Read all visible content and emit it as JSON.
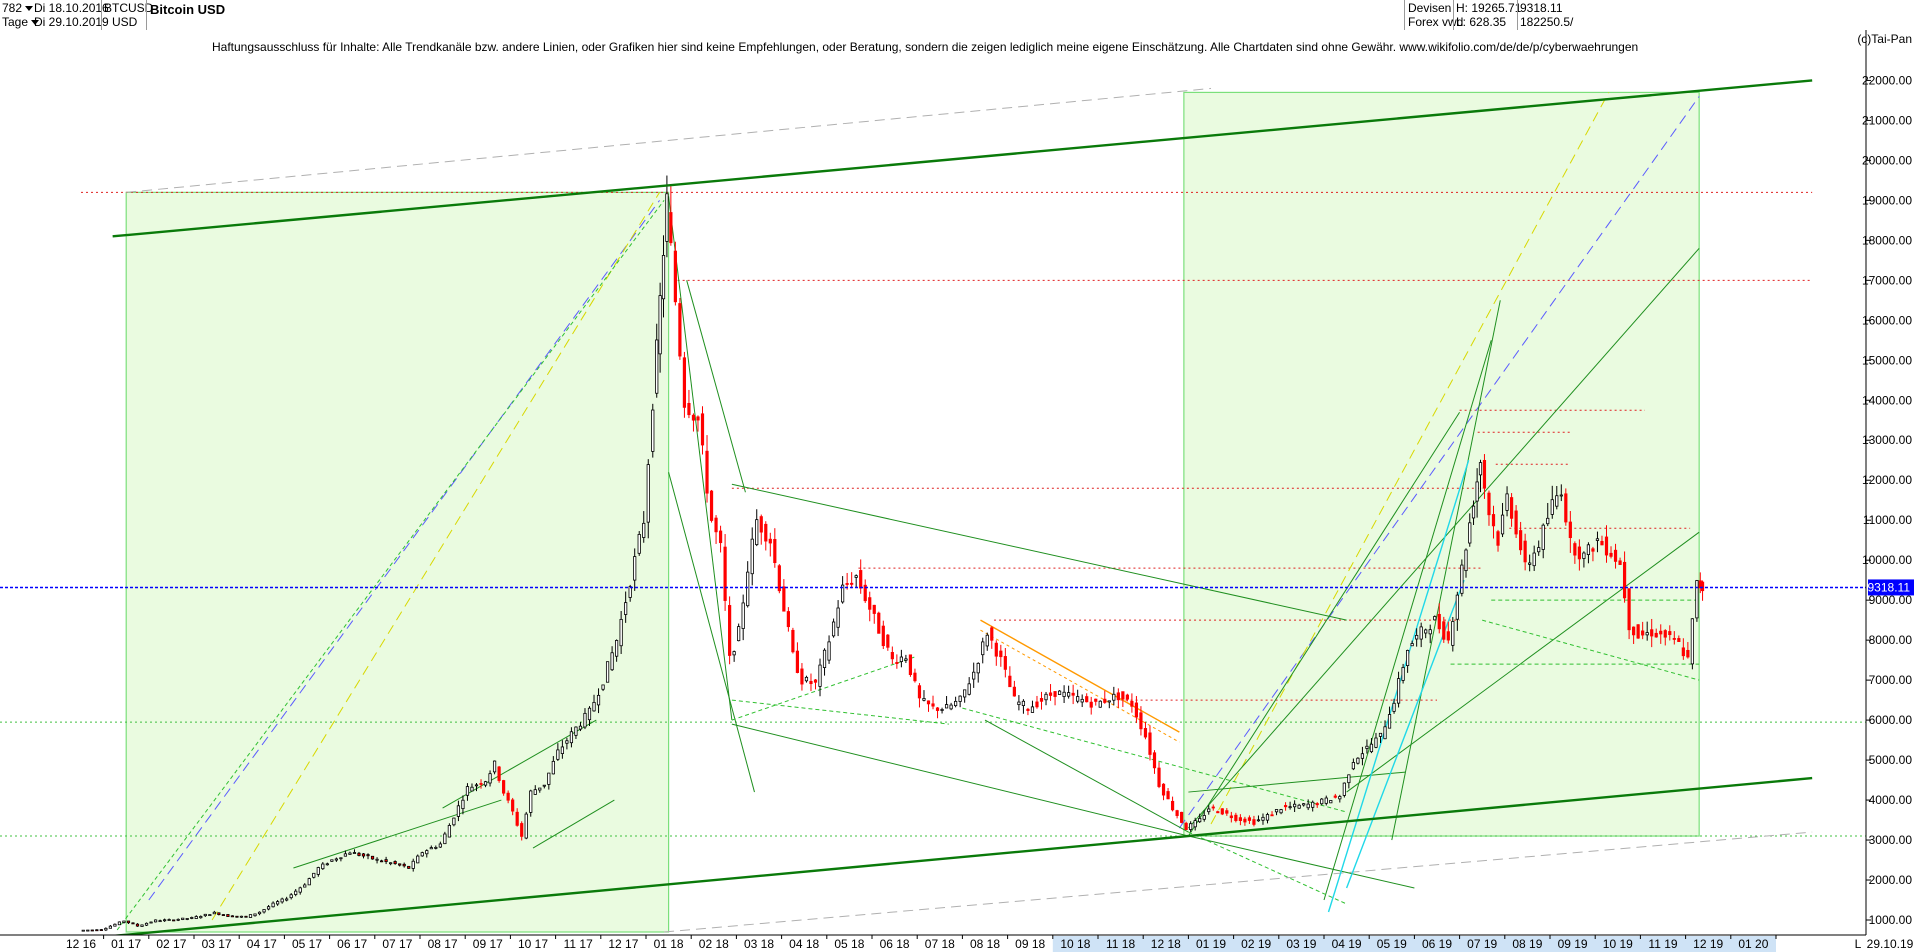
{
  "header": {
    "bars": "782",
    "from_label": "Di 18.10.2016",
    "period": "Tage",
    "to_label": "Di 29.10.2019",
    "symbol": "BTCUSD",
    "currency": "USD",
    "title": "Bitcoin USD",
    "market1": "Devisen",
    "market2": "Forex vwd",
    "high_label": "H: 19265.71",
    "low_label": "L: 628.35",
    "last": "9318.11",
    "volume": "182250.5/"
  },
  "disclaimer": "Haftungsausschluss für Inhalte: Alle Trendkanäle bzw. andere Linien, oder Grafiken hier sind keine Empfehlungen, oder Beratung, sondern die zeigen lediglich meine eigene Einschätzung. Alle Chartdaten sind ohne Gewähr.  www.wikifolio.com/de/de/p/cyberwaehrungen",
  "copyright": "(c)Tai-Pan",
  "colors": {
    "up": "#000000",
    "down": "#ff0000",
    "trend": "#008000",
    "box_fill": "#eafbe0",
    "box_border": "#7be07b",
    "last_line": "#0000ff",
    "bottom_axis": "#cfe3f6"
  },
  "chart_data": {
    "type": "candlestick",
    "title": "Bitcoin USD",
    "x_axis_labels": [
      "12 16",
      "01 17",
      "02 17",
      "03 17",
      "04 17",
      "05 17",
      "06 17",
      "07 17",
      "08 17",
      "09 17",
      "10 17",
      "11 17",
      "12 17",
      "01 18",
      "02 18",
      "03 18",
      "04 18",
      "05 18",
      "06 18",
      "07 18",
      "08 18",
      "09 18",
      "10 18",
      "11 18",
      "12 18",
      "01 19",
      "02 19",
      "03 19",
      "04 19",
      "05 19",
      "06 19",
      "07 19",
      "08 19",
      "09 19",
      "10 19",
      "11 19",
      "12 19",
      "01 20",
      "L",
      "29.10.19"
    ],
    "y_axis_labels": [
      "1000.00",
      "2000.00",
      "3000.00",
      "4000.00",
      "5000.00",
      "6000.00",
      "7000.00",
      "8000.00",
      "9000.00",
      "10000.00",
      "11000.00",
      "12000.00",
      "13000.00",
      "14000.00",
      "15000.00",
      "16000.00",
      "17000.00",
      "18000.00",
      "19000.00",
      "20000.00",
      "21000.00",
      "22000.00"
    ],
    "ylim": [
      600,
      22300
    ],
    "xlim": [
      0,
      38.3
    ],
    "last_value": 9318.11,
    "last_value_label": "9318.11",
    "highlight_months": [
      "10 18",
      "11 18",
      "12 18",
      "01 19",
      "02 19",
      "03 19",
      "04 19",
      "05 19",
      "06 19",
      "07 19",
      "08 19",
      "09 19",
      "10 19",
      "11 19",
      "12 19",
      "01 20"
    ],
    "price_path": [
      [
        0.0,
        740
      ],
      [
        0.5,
        760
      ],
      [
        1.0,
        980
      ],
      [
        1.3,
        850
      ],
      [
        1.7,
        990
      ],
      [
        2.0,
        1000
      ],
      [
        2.5,
        1050
      ],
      [
        3.0,
        1180
      ],
      [
        3.3,
        1100
      ],
      [
        3.7,
        1080
      ],
      [
        4.0,
        1200
      ],
      [
        4.3,
        1400
      ],
      [
        4.6,
        1550
      ],
      [
        5.0,
        1900
      ],
      [
        5.3,
        2300
      ],
      [
        5.6,
        2500
      ],
      [
        6.0,
        2700
      ],
      [
        6.3,
        2600
      ],
      [
        6.6,
        2500
      ],
      [
        7.0,
        2400
      ],
      [
        7.3,
        2300
      ],
      [
        7.6,
        2700
      ],
      [
        8.0,
        2900
      ],
      [
        8.3,
        3600
      ],
      [
        8.6,
        4300
      ],
      [
        9.0,
        4500
      ],
      [
        9.2,
        4900
      ],
      [
        9.4,
        4200
      ],
      [
        9.6,
        3700
      ],
      [
        9.8,
        3100
      ],
      [
        10.0,
        4200
      ],
      [
        10.3,
        4400
      ],
      [
        10.6,
        5200
      ],
      [
        11.0,
        5800
      ],
      [
        11.3,
        6200
      ],
      [
        11.6,
        7000
      ],
      [
        11.9,
        8000
      ],
      [
        12.2,
        9500
      ],
      [
        12.5,
        11000
      ],
      [
        12.7,
        14000
      ],
      [
        12.85,
        16500
      ],
      [
        13.0,
        19000
      ],
      [
        13.2,
        16500
      ],
      [
        13.4,
        14000
      ],
      [
        13.7,
        13500
      ],
      [
        14.0,
        11000
      ],
      [
        14.2,
        10300
      ],
      [
        14.4,
        7500
      ],
      [
        14.6,
        8200
      ],
      [
        14.8,
        9800
      ],
      [
        15.0,
        11000
      ],
      [
        15.3,
        10500
      ],
      [
        15.6,
        8800
      ],
      [
        15.8,
        7600
      ],
      [
        16.0,
        7000
      ],
      [
        16.3,
        6900
      ],
      [
        16.6,
        8000
      ],
      [
        16.9,
        9300
      ],
      [
        17.2,
        9600
      ],
      [
        17.5,
        8800
      ],
      [
        17.8,
        8000
      ],
      [
        18.0,
        7500
      ],
      [
        18.3,
        7600
      ],
      [
        18.6,
        6500
      ],
      [
        18.9,
        6300
      ],
      [
        19.2,
        6300
      ],
      [
        19.5,
        6500
      ],
      [
        19.8,
        7200
      ],
      [
        20.1,
        8200
      ],
      [
        20.4,
        7500
      ],
      [
        20.7,
        6500
      ],
      [
        21.0,
        6300
      ],
      [
        21.3,
        6500
      ],
      [
        21.6,
        6700
      ],
      [
        21.9,
        6600
      ],
      [
        22.2,
        6500
      ],
      [
        22.5,
        6400
      ],
      [
        22.8,
        6550
      ],
      [
        23.0,
        6600
      ],
      [
        23.3,
        6400
      ],
      [
        23.6,
        5600
      ],
      [
        23.9,
        4400
      ],
      [
        24.2,
        3800
      ],
      [
        24.5,
        3300
      ],
      [
        24.8,
        3500
      ],
      [
        25.0,
        3800
      ],
      [
        25.3,
        3700
      ],
      [
        25.6,
        3550
      ],
      [
        26.0,
        3450
      ],
      [
        26.3,
        3600
      ],
      [
        26.6,
        3800
      ],
      [
        27.0,
        3850
      ],
      [
        27.3,
        3900
      ],
      [
        27.6,
        4000
      ],
      [
        27.9,
        4100
      ],
      [
        28.2,
        5000
      ],
      [
        28.5,
        5300
      ],
      [
        28.8,
        5600
      ],
      [
        29.1,
        6500
      ],
      [
        29.4,
        7800
      ],
      [
        29.7,
        8200
      ],
      [
        30.0,
        8500
      ],
      [
        30.3,
        8000
      ],
      [
        30.6,
        9800
      ],
      [
        30.85,
        11500
      ],
      [
        31.0,
        12500
      ],
      [
        31.2,
        11200
      ],
      [
        31.4,
        10500
      ],
      [
        31.6,
        11600
      ],
      [
        31.8,
        10800
      ],
      [
        32.0,
        9800
      ],
      [
        32.3,
        10400
      ],
      [
        32.6,
        11400
      ],
      [
        32.8,
        11800
      ],
      [
        33.0,
        10400
      ],
      [
        33.3,
        10100
      ],
      [
        33.6,
        10500
      ],
      [
        33.9,
        10200
      ],
      [
        34.1,
        9900
      ],
      [
        34.3,
        8400
      ],
      [
        34.5,
        8100
      ],
      [
        34.8,
        8200
      ],
      [
        35.1,
        8100
      ],
      [
        35.4,
        7900
      ],
      [
        35.6,
        7500
      ],
      [
        35.8,
        9400
      ],
      [
        35.9,
        9318
      ]
    ],
    "thick_trendlines": [
      {
        "from": [
          0.7,
          18100
        ],
        "to": [
          38.3,
          22000
        ]
      },
      {
        "from": [
          0.7,
          600
        ],
        "to": [
          38.3,
          4550
        ]
      }
    ],
    "boxes": [
      {
        "x0": 1.0,
        "x1": 13.0,
        "y0": 700,
        "y1": 19200
      },
      {
        "x0": 24.4,
        "x1": 35.8,
        "y0": 3100,
        "y1": 21700
      }
    ],
    "thin_lines": [
      {
        "from": [
          14.4,
          11900
        ],
        "to": [
          28.0,
          8500
        ]
      },
      {
        "from": [
          14.4,
          5900
        ],
        "to": [
          24.5,
          3100
        ]
      },
      {
        "from": [
          13.4,
          17000
        ],
        "to": [
          14.7,
          11700
        ]
      },
      {
        "from": [
          13.0,
          19100
        ],
        "to": [
          14.4,
          6000
        ]
      },
      {
        "from": [
          13.0,
          12200
        ],
        "to": [
          14.9,
          4200
        ]
      },
      {
        "from": [
          24.5,
          3300
        ],
        "to": [
          35.8,
          17800
        ]
      },
      {
        "from": [
          24.5,
          3100
        ],
        "to": [
          30.5,
          13700
        ]
      },
      {
        "from": [
          29.0,
          3000
        ],
        "to": [
          31.4,
          16500
        ]
      },
      {
        "from": [
          27.5,
          1500
        ],
        "to": [
          31.2,
          15500
        ]
      },
      {
        "from": [
          28.0,
          4200
        ],
        "to": [
          35.8,
          10700
        ]
      },
      {
        "from": [
          24.5,
          4200
        ],
        "to": [
          29.3,
          4700
        ]
      },
      {
        "from": [
          4.7,
          2300
        ],
        "to": [
          9.3,
          4000
        ]
      },
      {
        "from": [
          8.0,
          3800
        ],
        "to": [
          11.4,
          6000
        ]
      },
      {
        "from": [
          10.0,
          2800
        ],
        "to": [
          11.8,
          4000
        ]
      },
      {
        "from": [
          24.5,
          3100
        ],
        "to": [
          29.5,
          1800
        ]
      },
      {
        "from": [
          20.0,
          6000
        ],
        "to": [
          24.5,
          3200
        ]
      }
    ],
    "dashed_green": [
      {
        "from": [
          0.8,
          750
        ],
        "to": [
          12.9,
          19000
        ]
      },
      {
        "from": [
          14.4,
          6000
        ],
        "to": [
          18.5,
          7600
        ]
      },
      {
        "from": [
          14.4,
          6500
        ],
        "to": [
          19.2,
          5900
        ]
      },
      {
        "from": [
          19.5,
          6300
        ],
        "to": [
          28.0,
          3700
        ]
      },
      {
        "from": [
          24.5,
          3200
        ],
        "to": [
          28.0,
          1400
        ]
      },
      {
        "from": [
          30.3,
          7400
        ],
        "to": [
          35.8,
          7400
        ]
      },
      {
        "from": [
          31.2,
          9000
        ],
        "to": [
          35.8,
          9000
        ]
      },
      {
        "from": [
          31.0,
          8500
        ],
        "to": [
          35.8,
          7000
        ]
      }
    ],
    "red_dashed_h": [
      {
        "y": 11800,
        "x0": 14.4,
        "x1": 31.0
      },
      {
        "y": 9800,
        "x0": 17.2,
        "x1": 31.0
      },
      {
        "y": 8500,
        "x0": 20.2,
        "x1": 30.5
      },
      {
        "y": 6500,
        "x0": 23.0,
        "x1": 30.0
      },
      {
        "y": 13750,
        "x0": 30.5,
        "x1": 34.6
      },
      {
        "y": 13200,
        "x0": 30.9,
        "x1": 33.0
      },
      {
        "y": 12400,
        "x0": 31.3,
        "x1": 32.9
      },
      {
        "y": 19200,
        "x0": 0.0,
        "x1": 38.3
      },
      {
        "y": 17000,
        "x0": 13.2,
        "x1": 38.3
      },
      {
        "y": 10800,
        "x0": 31.6,
        "x1": 35.6
      }
    ],
    "green_dashed_h": [
      {
        "y": 5950
      },
      {
        "y": 3100
      }
    ],
    "orange_line": {
      "from": [
        19.9,
        8500
      ],
      "to": [
        24.3,
        5700
      ]
    },
    "colored_dashes": [
      {
        "color": "#5a5aff",
        "from": [
          1.5,
          1500
        ],
        "to": [
          12.8,
          19000
        ]
      },
      {
        "color": "#d8d800",
        "from": [
          2.9,
          1000
        ],
        "to": [
          12.8,
          19200
        ]
      },
      {
        "color": "#5a5aff",
        "from": [
          24.3,
          3300
        ],
        "to": [
          35.8,
          21600
        ]
      },
      {
        "color": "#d8d800",
        "from": [
          25.0,
          3400
        ],
        "to": [
          33.8,
          21700
        ]
      },
      {
        "color": "#b0b0b0",
        "from": [
          1.0,
          19200
        ],
        "to": [
          25.0,
          21800
        ]
      },
      {
        "color": "#b0b0b0",
        "from": [
          12.9,
          700
        ],
        "to": [
          38.3,
          3200
        ]
      }
    ],
    "cyan_lines": [
      {
        "from": [
          28.0,
          1800
        ],
        "to": [
          30.6,
          9500
        ]
      },
      {
        "from": [
          27.6,
          1200
        ],
        "to": [
          30.7,
          12500
        ]
      }
    ]
  }
}
